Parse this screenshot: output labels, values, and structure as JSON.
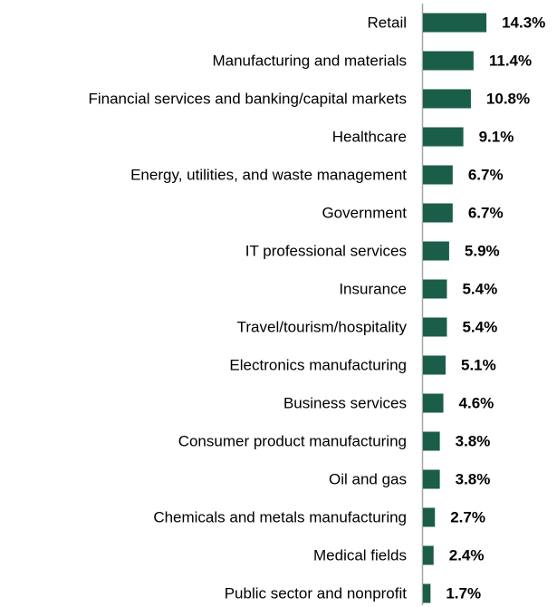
{
  "chart_data": {
    "type": "bar",
    "orientation": "horizontal",
    "title": "",
    "xlabel": "",
    "ylabel": "",
    "grid": false,
    "legend": "none",
    "bar_color": "#1a5e4a",
    "categories": [
      "Retail",
      "Manufacturing and materials",
      "Financial services and banking/capital markets",
      "Healthcare",
      "Energy, utilities, and waste management",
      "Government",
      "IT professional services",
      "Insurance",
      "Travel/tourism/hospitality",
      "Electronics manufacturing",
      "Business services",
      "Consumer product manufacturing",
      "Oil and gas",
      "Chemicals and metals manufacturing",
      "Medical fields",
      "Public sector and nonprofit"
    ],
    "values": [
      14.3,
      11.4,
      10.8,
      9.1,
      6.7,
      6.7,
      5.9,
      5.4,
      5.4,
      5.1,
      4.6,
      3.8,
      3.8,
      2.7,
      2.4,
      1.7
    ],
    "value_labels": [
      "14.3%",
      "11.4%",
      "10.8%",
      "9.1%",
      "6.7%",
      "6.7%",
      "5.9%",
      "5.4%",
      "5.4%",
      "5.1%",
      "4.6%",
      "3.8%",
      "3.8%",
      "2.7%",
      "2.4%",
      "1.7%"
    ]
  }
}
